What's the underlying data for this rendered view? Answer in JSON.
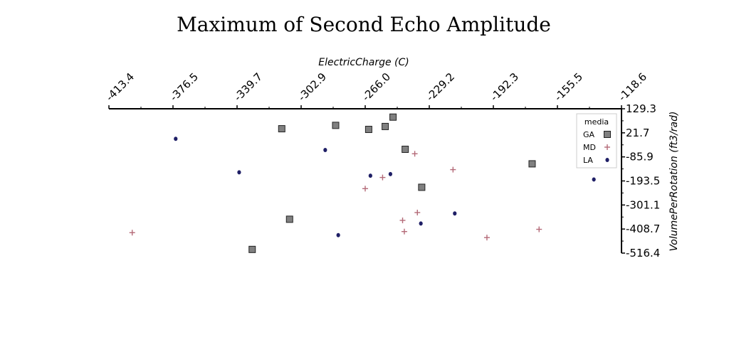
{
  "chart_data": {
    "type": "scatter",
    "title": "Maximum of Second Echo Amplitude",
    "xlabel": "ElectricCharge (C)",
    "ylabel": "VolumePerRotation (ft3/rad)",
    "xlim": [
      -413.4,
      -118.6
    ],
    "ylim": [
      -516.4,
      129.3
    ],
    "x_ticks": [
      "-413.4",
      "-376.5",
      "-339.7",
      "-302.9",
      "-266.0",
      "-229.2",
      "-192.3",
      "-155.5",
      "-118.6"
    ],
    "y_ticks": [
      "129.3",
      "21.7",
      "-85.9",
      "-193.5",
      "-301.1",
      "-408.7",
      "-516.4"
    ],
    "x_axis_position": "top",
    "y_axis_position": "right",
    "grid": false,
    "legend": {
      "title": "media",
      "position": "top-right"
    },
    "series": [
      {
        "name": "GA",
        "marker": "square",
        "color": "#808080",
        "points": [
          {
            "x": -314.0,
            "y": 40
          },
          {
            "x": -283.0,
            "y": 55
          },
          {
            "x": -264.0,
            "y": 37
          },
          {
            "x": -254.5,
            "y": 50
          },
          {
            "x": -250.0,
            "y": 92
          },
          {
            "x": -243.0,
            "y": -52
          },
          {
            "x": -233.5,
            "y": -222
          },
          {
            "x": -309.5,
            "y": -365
          },
          {
            "x": -331.0,
            "y": -500
          },
          {
            "x": -170.0,
            "y": -117
          }
        ]
      },
      {
        "name": "MD",
        "marker": "plus",
        "color": "#b46a78",
        "points": [
          {
            "x": -400.0,
            "y": -425
          },
          {
            "x": -237.5,
            "y": -72
          },
          {
            "x": -215.5,
            "y": -143
          },
          {
            "x": -256.0,
            "y": -178
          },
          {
            "x": -266.0,
            "y": -228
          },
          {
            "x": -236.0,
            "y": -335
          },
          {
            "x": -244.5,
            "y": -370
          },
          {
            "x": -243.5,
            "y": -420
          },
          {
            "x": -196.0,
            "y": -447
          },
          {
            "x": -166.0,
            "y": -410
          }
        ]
      },
      {
        "name": "LA",
        "marker": "dot",
        "color": "#1f1f66",
        "points": [
          {
            "x": -375.0,
            "y": -5
          },
          {
            "x": -289.0,
            "y": -55
          },
          {
            "x": -338.5,
            "y": -155
          },
          {
            "x": -263.0,
            "y": -170
          },
          {
            "x": -251.5,
            "y": -163
          },
          {
            "x": -134.5,
            "y": -187
          },
          {
            "x": -214.5,
            "y": -339
          },
          {
            "x": -234.0,
            "y": -384
          },
          {
            "x": -281.5,
            "y": -436
          }
        ]
      }
    ]
  }
}
